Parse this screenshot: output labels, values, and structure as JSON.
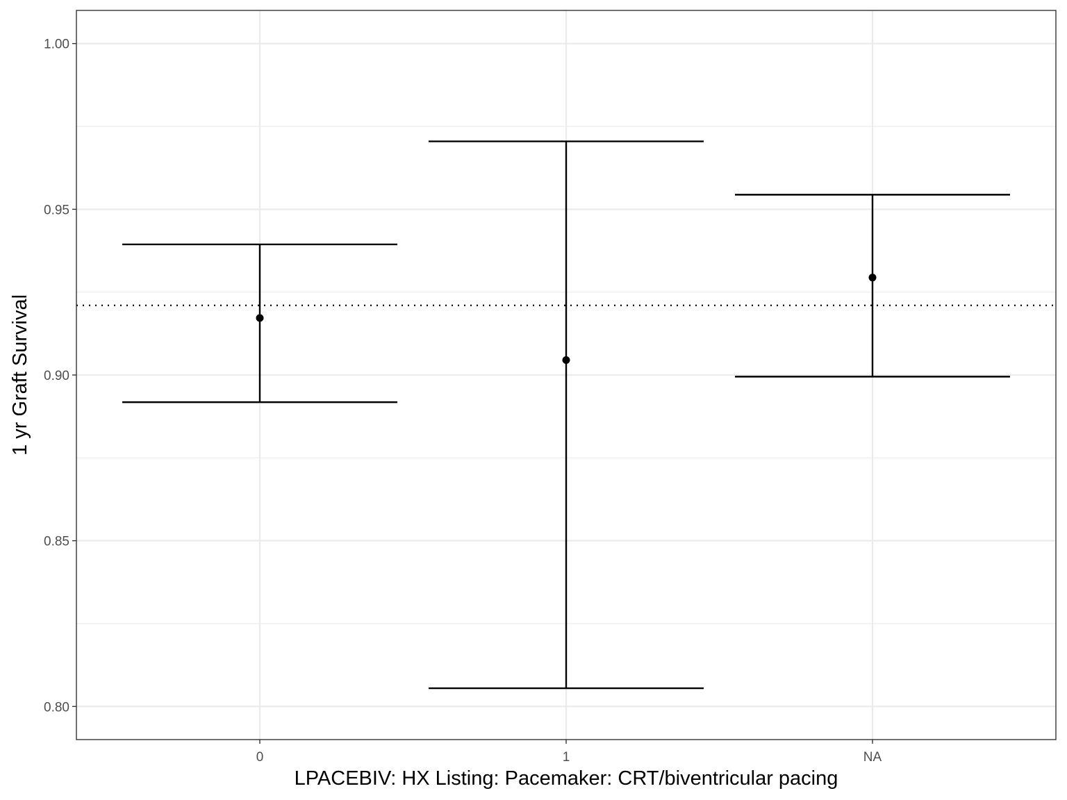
{
  "chart_data": {
    "type": "errorbar",
    "title": "",
    "xlabel": "LPACEBIV: HX Listing: Pacemaker: CRT/biventricular pacing",
    "ylabel": "1 yr Graft Survival",
    "categories": [
      "0",
      "1",
      "NA"
    ],
    "estimate": [
      0.9172,
      0.9045,
      0.9294
    ],
    "lower": [
      0.8918,
      0.8055,
      0.8995
    ],
    "upper": [
      0.9394,
      0.9705,
      0.9544
    ],
    "reference_line": {
      "value": 0.921,
      "style": "dotted"
    },
    "ylim": [
      0.79,
      1.01
    ],
    "yticks": [
      0.8,
      0.85,
      0.9,
      0.95,
      1.0
    ],
    "ytick_labels": [
      "0.80",
      "0.85",
      "0.90",
      "0.95",
      "1.00"
    ],
    "grid": true,
    "colors": {
      "marks": "#000000",
      "grid": "#ebebeb",
      "panel_border": "#333333",
      "tick_text": "#4d4d4d"
    }
  }
}
